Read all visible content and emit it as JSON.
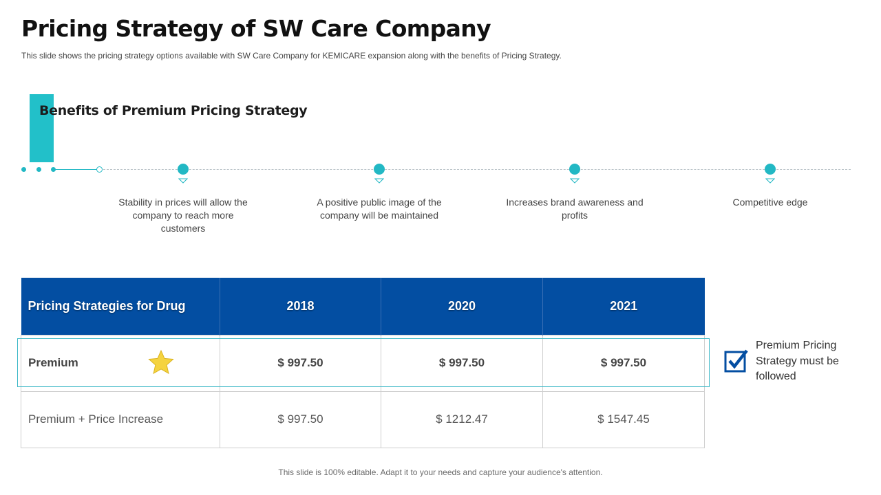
{
  "slide": {
    "title": "Pricing Strategy of SW Care Company",
    "subtitle": "This slide shows the pricing strategy options available  with SW Care Company for KEMICARE expansion along with the benefits of Pricing Strategy.",
    "footer": "This slide is 100% editable. Adapt it to your needs and capture your audience's attention."
  },
  "benefits": {
    "heading": "Benefits of Premium Pricing Strategy",
    "items": [
      {
        "text": "Stability in prices will allow the company to reach more customers"
      },
      {
        "text": "A positive public image of the company  will be maintained"
      },
      {
        "text": "Increases brand awareness and profits"
      },
      {
        "text": "Competitive edge"
      }
    ]
  },
  "table": {
    "headers": [
      "Pricing Strategies for Drug",
      "2018",
      "2020",
      "2021"
    ],
    "rows": [
      {
        "label": "Premium",
        "values": [
          "$ 997.50",
          "$ 997.50",
          "$ 997.50"
        ]
      },
      {
        "label": "Premium + Price Increase",
        "values": [
          "$ 997.50",
          "$ 1212.47",
          "$ 1547.45"
        ]
      }
    ]
  },
  "note": {
    "text": "Premium Pricing Strategy must be followed",
    "icon": "checkbox-check-icon"
  },
  "colors": {
    "accent": "#22c0c9",
    "header_blue": "#034ea2",
    "star": "#f5d33f",
    "check": "#034ea2"
  }
}
